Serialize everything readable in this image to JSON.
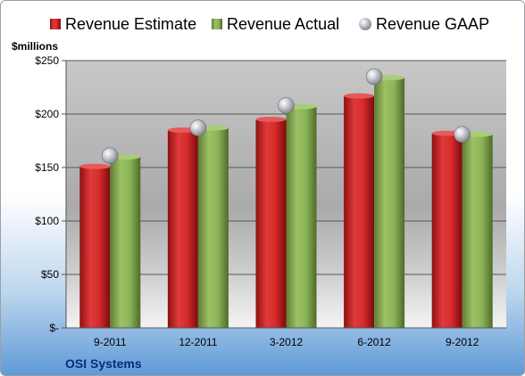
{
  "chart_data": {
    "type": "bar",
    "title": "",
    "company": "OSI Systems",
    "ylabel": "$millions",
    "xlabel": "",
    "categories": [
      "9-2011",
      "12-2011",
      "3-2012",
      "6-2012",
      "9-2012"
    ],
    "series": [
      {
        "name": "Revenue Estimate",
        "kind": "bar",
        "color": "#d42a2a",
        "values": [
          151,
          185,
          195,
          217,
          182
        ]
      },
      {
        "name": "Revenue Actual",
        "kind": "bar",
        "color": "#8db35a",
        "values": [
          160,
          187,
          207,
          234,
          181
        ]
      },
      {
        "name": "Revenue GAAP",
        "kind": "marker",
        "color": "#b8bcc4",
        "values": [
          161,
          187,
          208,
          235,
          181
        ]
      }
    ],
    "ylim": [
      0,
      250
    ],
    "yticks": [
      0,
      50,
      100,
      150,
      200,
      250
    ],
    "ytick_labels": [
      "$-",
      "$50",
      "$100",
      "$150",
      "$200",
      "$250"
    ],
    "grid": true,
    "legend_position": "top"
  }
}
